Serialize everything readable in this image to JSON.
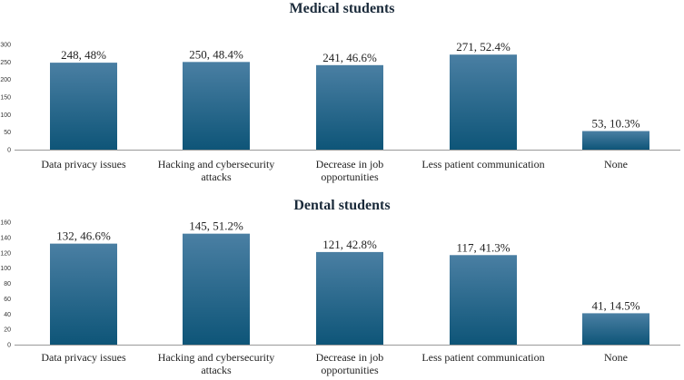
{
  "colors": {
    "bar_top": "#4a7fa3",
    "bar_bottom": "#0e5578",
    "axis": "#999999"
  },
  "chart_data": [
    {
      "type": "bar",
      "title": "Medical students",
      "categories": [
        [
          "Data privacy issues"
        ],
        [
          "Hacking and cybersecurity",
          "attacks"
        ],
        [
          "Decrease in job",
          "opportunities"
        ],
        [
          "Less patient communication"
        ],
        [
          "None"
        ]
      ],
      "values": [
        248,
        250,
        241,
        271,
        53
      ],
      "data_labels": [
        "248, 48%",
        "250, 48.4%",
        "241, 46.6%",
        "271, 52.4%",
        "53, 10.3%"
      ],
      "yticks": [
        "0",
        "50",
        "100",
        "150",
        "200",
        "250",
        "300"
      ],
      "ylim": [
        0,
        300
      ],
      "xlabel": "",
      "ylabel": ""
    },
    {
      "type": "bar",
      "title": "Dental students",
      "categories": [
        [
          "Data privacy issues"
        ],
        [
          "Hacking and cybersecurity",
          "attacks"
        ],
        [
          "Decrease in job",
          "opportunities"
        ],
        [
          "Less patient communication"
        ],
        [
          "None"
        ]
      ],
      "values": [
        132,
        145,
        121,
        117,
        41
      ],
      "data_labels": [
        "132, 46.6%",
        "145, 51.2%",
        "121, 42.8%",
        "117, 41.3%",
        "41, 14.5%"
      ],
      "yticks": [
        "0",
        "20",
        "40",
        "60",
        "80",
        "100",
        "120",
        "140",
        "160"
      ],
      "ylim": [
        0,
        160
      ],
      "xlabel": "",
      "ylabel": ""
    }
  ]
}
